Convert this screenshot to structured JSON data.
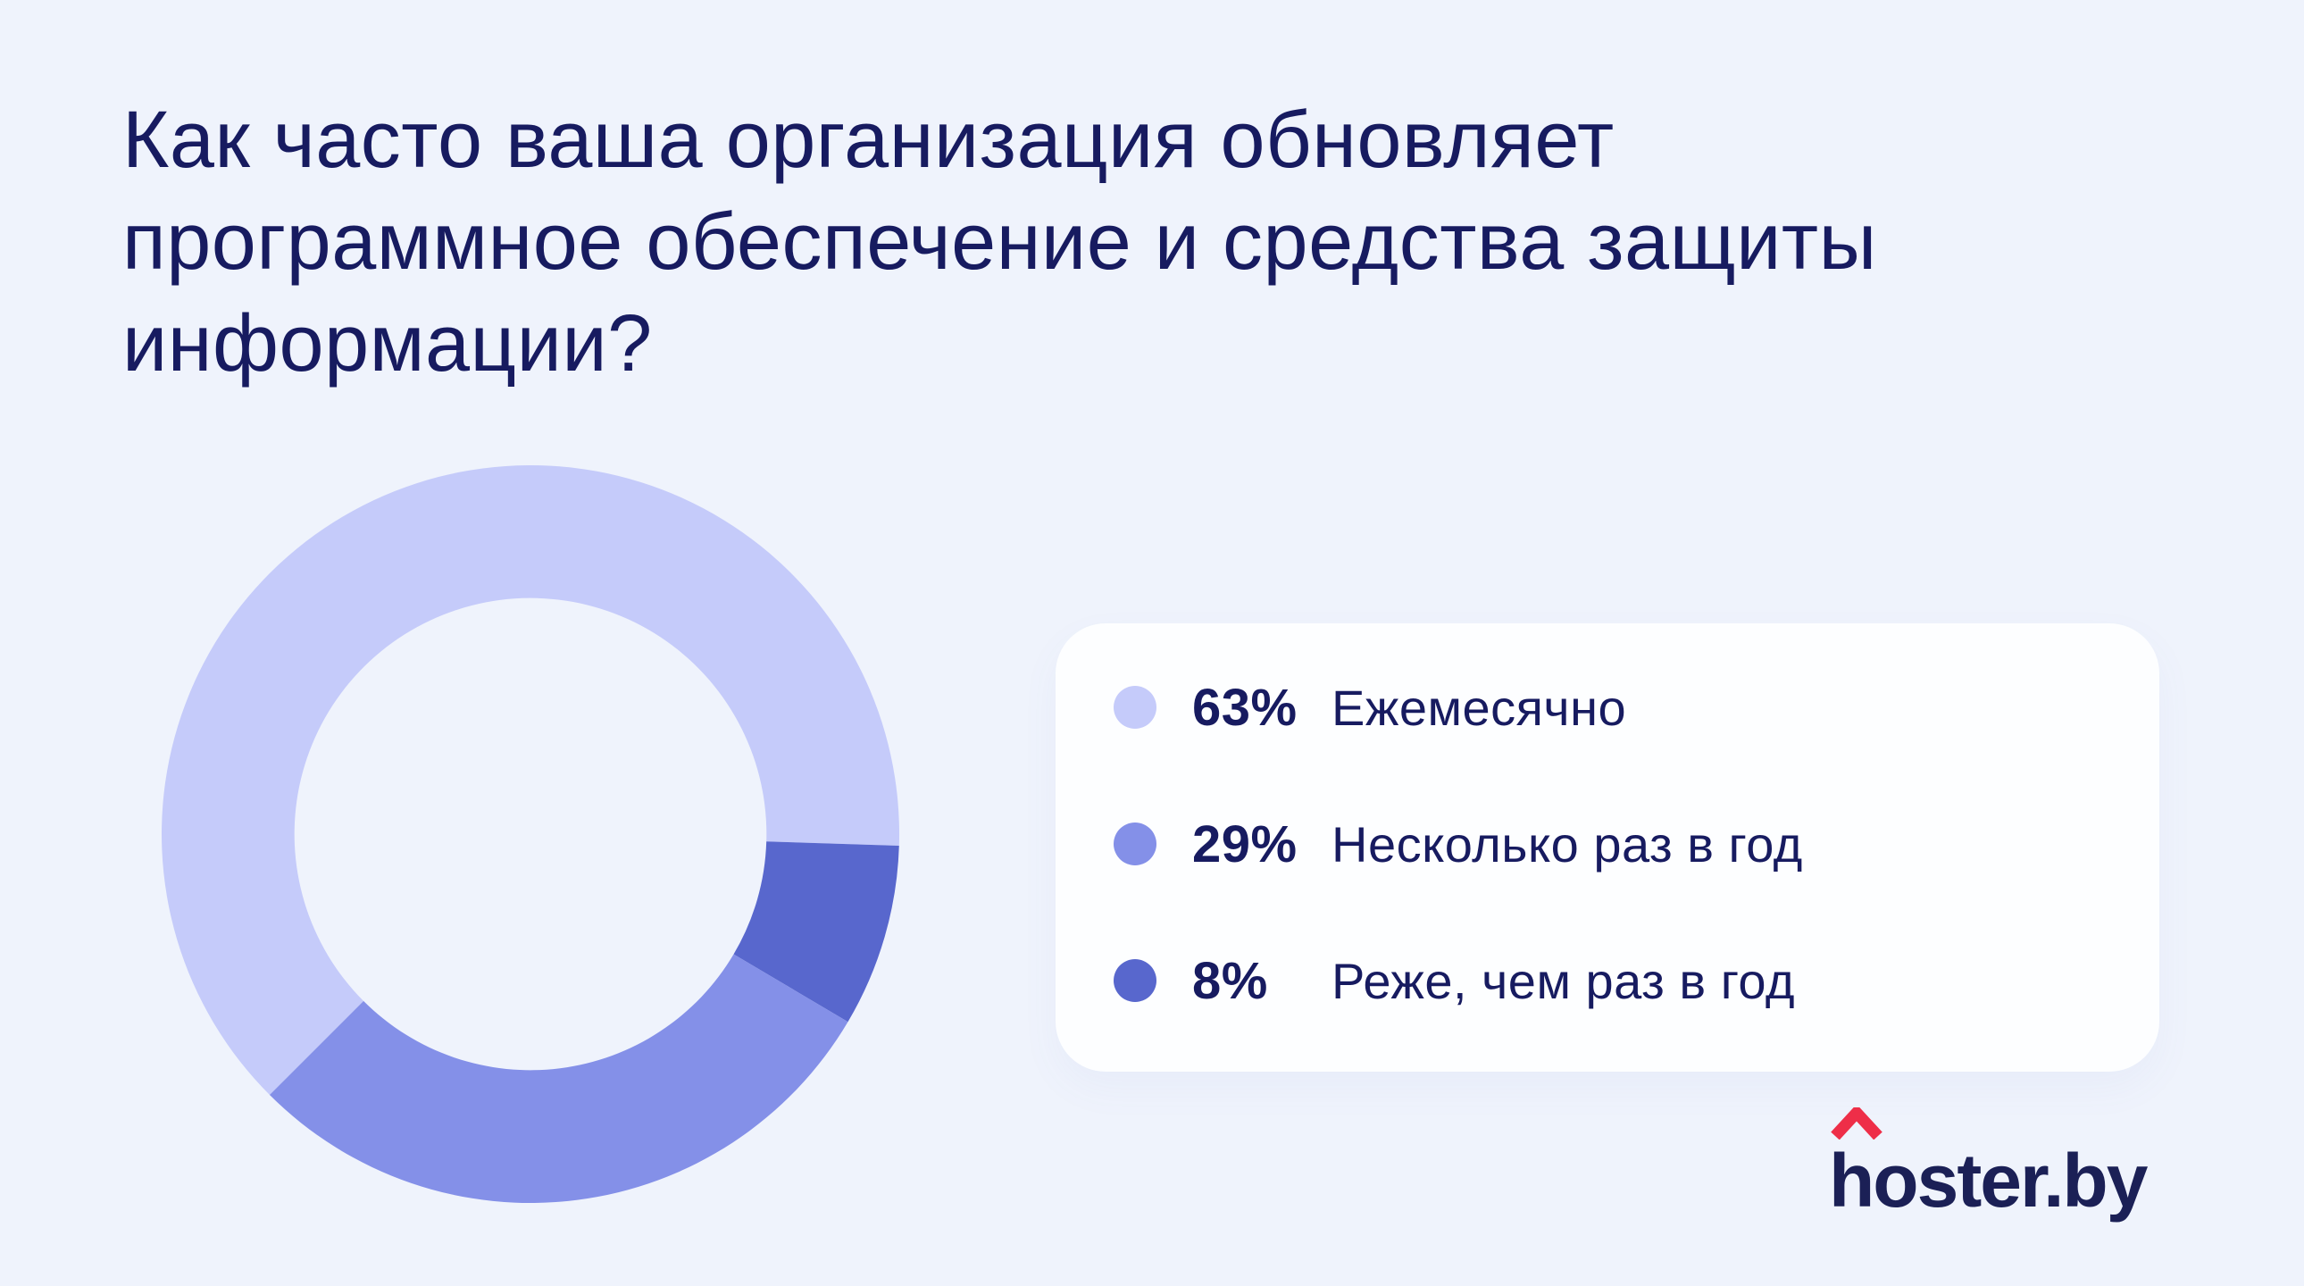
{
  "page": {
    "background": "#eff3fc"
  },
  "colors": {
    "text_primary": "#171b60",
    "card_background": "#fdfeff",
    "logo_text": "#1b2056",
    "logo_mark": "#ee2e48"
  },
  "title_lines": [
    "Как часто ваша организация обновляет",
    "программное обеспечение и средства защиты",
    "информации?"
  ],
  "chart_data": {
    "type": "pie",
    "donut": true,
    "title": "Как часто ваша организация обновляет программное обеспечение и средства защиты информации?",
    "unit": "%",
    "start_angle_deg": 225,
    "rotation": "clockwise",
    "inner_radius_ratio": 0.64,
    "legend_position": "right",
    "slices": [
      {
        "label": "Ежемесячно",
        "value": 63,
        "display": "63%",
        "color": "#c5cbfa"
      },
      {
        "label": "Несколько раз в год",
        "value": 29,
        "display": "29%",
        "color": "#8490e8"
      },
      {
        "label": "Реже, чем раз в год",
        "value": 8,
        "display": "8%",
        "color": "#5867cd"
      }
    ],
    "draw_order": [
      0,
      2,
      1
    ]
  },
  "logo": {
    "text": "hoster.by",
    "mark": "roof-chevron"
  }
}
